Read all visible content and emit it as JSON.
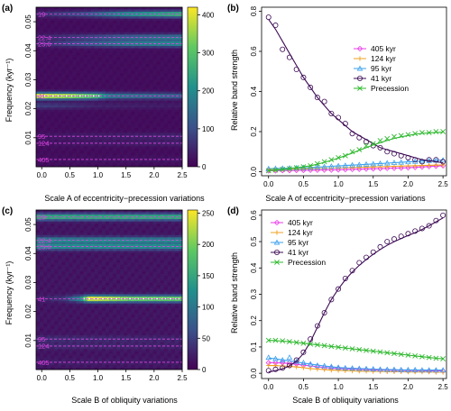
{
  "figure": {
    "panels": [
      {
        "id": "a",
        "letter": "(a)",
        "xlabel": "Scale A of eccentricity−precession variations",
        "ylabel": "Frequency (kyr⁻¹)"
      },
      {
        "id": "b",
        "letter": "(b)",
        "xlabel": "Scale A of eccentricity−precession variations",
        "ylabel": "Relative band strength"
      },
      {
        "id": "c",
        "letter": "(c)",
        "xlabel": "Scale B of obliquity variations",
        "ylabel": "Frequency (kyr⁻¹)"
      },
      {
        "id": "d",
        "letter": "(d)",
        "xlabel": "Scale B of obliquity variations",
        "ylabel": "Relative band strength"
      }
    ]
  },
  "colors": {
    "405": "#e83ee8",
    "124": "#f0a020",
    "95": "#3aa0ee",
    "41": "#3d0b55",
    "precession": "#2eb82e",
    "guide": "#e040e0"
  },
  "chart_data": [
    {
      "panel": "a",
      "type": "heatmap",
      "x_range": [
        -0.1,
        2.5
      ],
      "y_range": [
        0.0,
        0.055
      ],
      "xticks": [
        "0.0",
        "0.5",
        "1.0",
        "1.5",
        "2.0",
        "2.5"
      ],
      "yticks": [
        "0.01",
        "0.02",
        "0.03",
        "0.04",
        "0.05"
      ],
      "colorbar_ticks": [
        "0",
        "100",
        "200",
        "300",
        "400"
      ],
      "colorbar_max": 420,
      "period_labels": [
        "19",
        "22.4",
        "23.6",
        "41",
        "95",
        "124",
        "405"
      ],
      "period_frequencies": [
        0.0526,
        0.0446,
        0.0424,
        0.0244,
        0.0105,
        0.0081,
        0.0025
      ],
      "bands": [
        {
          "f": 0.0526,
          "profile": [
            [
              -0.1,
              40
            ],
            [
              0.8,
              100
            ],
            [
              1.5,
              210
            ],
            [
              2.5,
              270
            ]
          ]
        },
        {
          "f": 0.0446,
          "profile": [
            [
              -0.1,
              30
            ],
            [
              0.8,
              80
            ],
            [
              1.5,
              130
            ],
            [
              2.5,
              170
            ]
          ]
        },
        {
          "f": 0.0424,
          "profile": [
            [
              -0.1,
              40
            ],
            [
              0.8,
              110
            ],
            [
              1.5,
              170
            ],
            [
              2.5,
              200
            ]
          ]
        },
        {
          "f": 0.0244,
          "profile": [
            [
              -0.1,
              420
            ],
            [
              0.5,
              380
            ],
            [
              0.95,
              300
            ],
            [
              1.2,
              170
            ],
            [
              2.5,
              120
            ]
          ]
        },
        {
          "f": 0.021,
          "profile": [
            [
              -0.1,
              70
            ],
            [
              0.5,
              50
            ],
            [
              1.0,
              30
            ],
            [
              2.5,
              20
            ]
          ]
        },
        {
          "f": 0.0105,
          "profile": [
            [
              -0.1,
              15
            ],
            [
              2.5,
              40
            ]
          ]
        },
        {
          "f": 0.0081,
          "profile": [
            [
              -0.1,
              10
            ],
            [
              2.5,
              30
            ]
          ]
        },
        {
          "f": 0.0025,
          "profile": [
            [
              -0.1,
              5
            ],
            [
              2.5,
              15
            ]
          ]
        }
      ]
    },
    {
      "panel": "b",
      "type": "line",
      "x_range": [
        -0.1,
        2.55
      ],
      "y_range": [
        -0.02,
        0.82
      ],
      "xticks": [
        "0.0",
        "0.5",
        "1.0",
        "1.5",
        "2.0",
        "2.5"
      ],
      "yticks": [
        "0.0",
        "0.2",
        "0.4",
        "0.6",
        "0.8"
      ],
      "legend_position": "top-right",
      "x": [
        0.0,
        0.1,
        0.2,
        0.3,
        0.4,
        0.5,
        0.6,
        0.7,
        0.8,
        0.9,
        1.0,
        1.1,
        1.2,
        1.3,
        1.4,
        1.5,
        1.6,
        1.7,
        1.8,
        1.9,
        2.0,
        2.1,
        2.2,
        2.3,
        2.4,
        2.5
      ],
      "series": [
        {
          "name": "405 kyr",
          "key": "405",
          "marker": "diamond",
          "points": [
            0.005,
            0.005,
            0.006,
            0.006,
            0.007,
            0.007,
            0.008,
            0.008,
            0.009,
            0.009,
            0.01,
            0.011,
            0.012,
            0.013,
            0.014,
            0.015,
            0.016,
            0.017,
            0.018,
            0.019,
            0.02,
            0.022,
            0.024,
            0.026,
            0.028,
            0.03
          ],
          "fit": [
            0.005,
            0.005,
            0.006,
            0.006,
            0.007,
            0.007,
            0.008,
            0.008,
            0.009,
            0.009,
            0.01,
            0.011,
            0.012,
            0.013,
            0.014,
            0.015,
            0.016,
            0.017,
            0.018,
            0.019,
            0.02,
            0.022,
            0.024,
            0.026,
            0.028,
            0.03
          ]
        },
        {
          "name": "124 kyr",
          "key": "124",
          "marker": "plus",
          "points": [
            0.01,
            0.01,
            0.012,
            0.012,
            0.013,
            0.014,
            0.015,
            0.016,
            0.017,
            0.018,
            0.019,
            0.02,
            0.021,
            0.022,
            0.023,
            0.024,
            0.025,
            0.026,
            0.027,
            0.028,
            0.029,
            0.03,
            0.031,
            0.032,
            0.033,
            0.034
          ],
          "fit": [
            0.01,
            0.011,
            0.012,
            0.012,
            0.013,
            0.014,
            0.015,
            0.016,
            0.017,
            0.018,
            0.019,
            0.02,
            0.021,
            0.022,
            0.023,
            0.024,
            0.025,
            0.026,
            0.027,
            0.028,
            0.029,
            0.03,
            0.031,
            0.032,
            0.033,
            0.034
          ]
        },
        {
          "name": "95 kyr",
          "key": "95",
          "marker": "triangle",
          "points": [
            0.015,
            0.016,
            0.017,
            0.018,
            0.019,
            0.02,
            0.021,
            0.023,
            0.025,
            0.027,
            0.029,
            0.031,
            0.033,
            0.035,
            0.037,
            0.039,
            0.041,
            0.043,
            0.045,
            0.047,
            0.049,
            0.051,
            0.053,
            0.055,
            0.056,
            0.058
          ],
          "fit": [
            0.015,
            0.016,
            0.017,
            0.018,
            0.019,
            0.02,
            0.021,
            0.023,
            0.025,
            0.027,
            0.029,
            0.031,
            0.033,
            0.035,
            0.037,
            0.039,
            0.041,
            0.043,
            0.045,
            0.047,
            0.049,
            0.051,
            0.053,
            0.055,
            0.056,
            0.058
          ]
        },
        {
          "name": "41 kyr",
          "key": "41",
          "marker": "circle",
          "points": [
            0.77,
            0.73,
            0.61,
            0.57,
            0.51,
            0.47,
            0.42,
            0.37,
            0.35,
            0.29,
            0.27,
            0.24,
            0.19,
            0.17,
            0.15,
            0.13,
            0.12,
            0.1,
            0.09,
            0.08,
            0.07,
            0.06,
            0.05,
            0.06,
            0.06,
            0.05
          ],
          "fit": [
            0.76,
            0.71,
            0.65,
            0.59,
            0.53,
            0.47,
            0.42,
            0.37,
            0.33,
            0.29,
            0.26,
            0.23,
            0.2,
            0.18,
            0.16,
            0.14,
            0.12,
            0.11,
            0.1,
            0.09,
            0.08,
            0.07,
            0.06,
            0.055,
            0.05,
            0.045
          ]
        },
        {
          "name": "Precession",
          "key": "precession",
          "marker": "x",
          "points": [
            0.005,
            0.008,
            0.012,
            0.016,
            0.02,
            0.025,
            0.03,
            0.04,
            0.05,
            0.06,
            0.07,
            0.08,
            0.1,
            0.11,
            0.13,
            0.14,
            0.155,
            0.165,
            0.175,
            0.18,
            0.185,
            0.19,
            0.195,
            0.195,
            0.2,
            0.2
          ],
          "fit": [
            0.005,
            0.008,
            0.012,
            0.016,
            0.02,
            0.025,
            0.03,
            0.038,
            0.047,
            0.057,
            0.068,
            0.08,
            0.093,
            0.107,
            0.12,
            0.133,
            0.145,
            0.156,
            0.166,
            0.174,
            0.181,
            0.187,
            0.191,
            0.194,
            0.196,
            0.197
          ]
        }
      ]
    },
    {
      "panel": "c",
      "type": "heatmap",
      "x_range": [
        -0.1,
        2.5
      ],
      "y_range": [
        0.0,
        0.055
      ],
      "xticks": [
        "0.0",
        "0.5",
        "1.0",
        "1.5",
        "2.0",
        "2.5"
      ],
      "yticks": [
        "0.01",
        "0.02",
        "0.03",
        "0.04",
        "0.05"
      ],
      "colorbar_ticks": [
        "0",
        "50",
        "100",
        "150",
        "200",
        "250"
      ],
      "colorbar_max": 255,
      "period_labels": [
        "19",
        "22.4",
        "23.6",
        "41",
        "95",
        "124",
        "405"
      ],
      "period_frequencies": [
        0.0526,
        0.0446,
        0.0424,
        0.0244,
        0.0105,
        0.0081,
        0.0025
      ],
      "bands": [
        {
          "f": 0.0526,
          "profile": [
            [
              -0.1,
              150
            ],
            [
              2.5,
              150
            ]
          ]
        },
        {
          "f": 0.0446,
          "profile": [
            [
              -0.1,
              110
            ],
            [
              2.5,
              110
            ]
          ]
        },
        {
          "f": 0.0424,
          "profile": [
            [
              -0.1,
              120
            ],
            [
              2.5,
              120
            ]
          ]
        },
        {
          "f": 0.0244,
          "profile": [
            [
              -0.1,
              10
            ],
            [
              0.4,
              30
            ],
            [
              0.7,
              120
            ],
            [
              0.85,
              255
            ],
            [
              1.1,
              240
            ],
            [
              1.6,
              200
            ],
            [
              2.5,
              195
            ]
          ]
        },
        {
          "f": 0.0105,
          "profile": [
            [
              -0.1,
              25
            ],
            [
              2.5,
              15
            ]
          ]
        },
        {
          "f": 0.0081,
          "profile": [
            [
              -0.1,
              20
            ],
            [
              2.5,
              12
            ]
          ]
        },
        {
          "f": 0.0025,
          "profile": [
            [
              -0.1,
              10
            ],
            [
              2.5,
              6
            ]
          ]
        }
      ]
    },
    {
      "panel": "d",
      "type": "line",
      "x_range": [
        -0.1,
        2.55
      ],
      "y_range": [
        -0.02,
        0.62
      ],
      "xticks": [
        "0.0",
        "0.5",
        "1.0",
        "1.5",
        "2.0",
        "2.5"
      ],
      "yticks": [
        "0.0",
        "0.1",
        "0.2",
        "0.3",
        "0.4",
        "0.5",
        "0.6"
      ],
      "legend_position": "top-left",
      "x": [
        0.0,
        0.1,
        0.2,
        0.3,
        0.4,
        0.5,
        0.6,
        0.7,
        0.8,
        0.9,
        1.0,
        1.1,
        1.2,
        1.3,
        1.4,
        1.5,
        1.6,
        1.7,
        1.8,
        1.9,
        2.0,
        2.1,
        2.2,
        2.3,
        2.4,
        2.5
      ],
      "series": [
        {
          "name": "405 kyr",
          "key": "405",
          "marker": "diamond",
          "points": [
            0.04,
            0.04,
            0.04,
            0.04,
            0.035,
            0.03,
            0.03,
            0.025,
            0.02,
            0.02,
            0.018,
            0.017,
            0.016,
            0.015,
            0.014,
            0.013,
            0.012,
            0.012,
            0.011,
            0.011,
            0.01,
            0.01,
            0.01,
            0.009,
            0.009,
            0.009
          ],
          "fit": [
            0.041,
            0.04,
            0.039,
            0.037,
            0.034,
            0.031,
            0.028,
            0.025,
            0.022,
            0.02,
            0.018,
            0.017,
            0.016,
            0.015,
            0.014,
            0.013,
            0.012,
            0.012,
            0.011,
            0.011,
            0.01,
            0.01,
            0.01,
            0.009,
            0.009,
            0.009
          ]
        },
        {
          "name": "124 kyr",
          "key": "124",
          "marker": "plus",
          "points": [
            0.03,
            0.03,
            0.028,
            0.026,
            0.024,
            0.021,
            0.018,
            0.016,
            0.014,
            0.012,
            0.011,
            0.01,
            0.009,
            0.008,
            0.008,
            0.007,
            0.007,
            0.006,
            0.006,
            0.006,
            0.005,
            0.005,
            0.005,
            0.005,
            0.004,
            0.004
          ],
          "fit": [
            0.03,
            0.029,
            0.028,
            0.026,
            0.024,
            0.021,
            0.018,
            0.016,
            0.014,
            0.012,
            0.011,
            0.01,
            0.009,
            0.008,
            0.008,
            0.007,
            0.007,
            0.006,
            0.006,
            0.006,
            0.005,
            0.005,
            0.005,
            0.005,
            0.004,
            0.004
          ]
        },
        {
          "name": "95 kyr",
          "key": "95",
          "marker": "triangle",
          "points": [
            0.06,
            0.055,
            0.05,
            0.06,
            0.045,
            0.04,
            0.035,
            0.03,
            0.028,
            0.025,
            0.022,
            0.02,
            0.019,
            0.018,
            0.017,
            0.016,
            0.015,
            0.014,
            0.014,
            0.013,
            0.013,
            0.013,
            0.012,
            0.012,
            0.012,
            0.012
          ],
          "fit": [
            0.058,
            0.055,
            0.051,
            0.047,
            0.043,
            0.039,
            0.035,
            0.031,
            0.028,
            0.025,
            0.022,
            0.02,
            0.019,
            0.018,
            0.017,
            0.016,
            0.015,
            0.014,
            0.014,
            0.013,
            0.013,
            0.013,
            0.012,
            0.012,
            0.012,
            0.012
          ]
        },
        {
          "name": "41 kyr",
          "key": "41",
          "marker": "circle",
          "points": [
            0.01,
            0.015,
            0.02,
            0.03,
            0.05,
            0.08,
            0.13,
            0.18,
            0.23,
            0.28,
            0.32,
            0.36,
            0.39,
            0.42,
            0.44,
            0.46,
            0.48,
            0.5,
            0.51,
            0.52,
            0.53,
            0.54,
            0.55,
            0.56,
            0.58,
            0.6
          ],
          "fit": [
            0.005,
            0.01,
            0.017,
            0.028,
            0.046,
            0.075,
            0.12,
            0.175,
            0.23,
            0.28,
            0.32,
            0.355,
            0.385,
            0.41,
            0.432,
            0.452,
            0.47,
            0.486,
            0.5,
            0.512,
            0.523,
            0.534,
            0.546,
            0.56,
            0.575,
            0.59
          ]
        },
        {
          "name": "Precession",
          "key": "precession",
          "marker": "x",
          "points": [
            0.125,
            0.125,
            0.123,
            0.12,
            0.117,
            0.114,
            0.111,
            0.108,
            0.105,
            0.102,
            0.099,
            0.096,
            0.093,
            0.09,
            0.087,
            0.084,
            0.081,
            0.078,
            0.075,
            0.072,
            0.069,
            0.066,
            0.063,
            0.06,
            0.057,
            0.055
          ],
          "fit": [
            0.125,
            0.124,
            0.122,
            0.12,
            0.117,
            0.114,
            0.111,
            0.108,
            0.105,
            0.102,
            0.099,
            0.096,
            0.093,
            0.09,
            0.087,
            0.084,
            0.081,
            0.078,
            0.075,
            0.072,
            0.069,
            0.066,
            0.063,
            0.06,
            0.057,
            0.055
          ]
        }
      ]
    }
  ]
}
